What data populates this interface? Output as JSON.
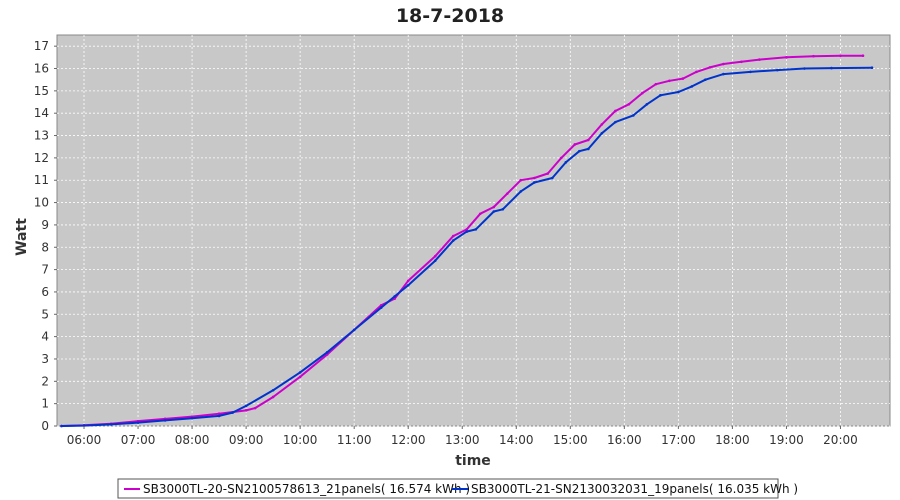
{
  "chart_data": {
    "type": "line",
    "title": "18-7-2018",
    "xlabel": "time",
    "ylabel": "Watt",
    "x_tick_labels": [
      "06:00",
      "07:00",
      "08:00",
      "09:00",
      "10:00",
      "11:00",
      "12:00",
      "13:00",
      "14:00",
      "15:00",
      "16:00",
      "17:00",
      "18:00",
      "19:00",
      "20:00"
    ],
    "xlim": [
      "05:30",
      "20:55"
    ],
    "ylim": [
      0,
      17.5
    ],
    "y_ticks": [
      0,
      1,
      2,
      3,
      4,
      5,
      6,
      7,
      8,
      9,
      10,
      11,
      12,
      13,
      14,
      15,
      16,
      17
    ],
    "grid": true,
    "legend_position": "bottom",
    "background": "#c8c8c8",
    "series": [
      {
        "name": "SB3000TL-20-SN2100578613_21panels( 16.574 kWh )",
        "color": "#cc00cc",
        "points": [
          [
            "05:35",
            0.0
          ],
          [
            "06:00",
            0.03
          ],
          [
            "06:30",
            0.1
          ],
          [
            "07:00",
            0.22
          ],
          [
            "07:30",
            0.32
          ],
          [
            "08:00",
            0.42
          ],
          [
            "08:30",
            0.55
          ],
          [
            "09:00",
            0.7
          ],
          [
            "09:10",
            0.8
          ],
          [
            "09:30",
            1.3
          ],
          [
            "10:00",
            2.2
          ],
          [
            "10:30",
            3.2
          ],
          [
            "11:00",
            4.3
          ],
          [
            "11:30",
            5.4
          ],
          [
            "11:45",
            5.7
          ],
          [
            "12:00",
            6.5
          ],
          [
            "12:30",
            7.6
          ],
          [
            "12:50",
            8.5
          ],
          [
            "13:05",
            8.8
          ],
          [
            "13:20",
            9.5
          ],
          [
            "13:35",
            9.8
          ],
          [
            "13:50",
            10.4
          ],
          [
            "14:05",
            11.0
          ],
          [
            "14:20",
            11.1
          ],
          [
            "14:35",
            11.3
          ],
          [
            "14:50",
            12.0
          ],
          [
            "15:05",
            12.6
          ],
          [
            "15:20",
            12.8
          ],
          [
            "15:35",
            13.5
          ],
          [
            "15:50",
            14.1
          ],
          [
            "16:05",
            14.4
          ],
          [
            "16:20",
            14.9
          ],
          [
            "16:35",
            15.3
          ],
          [
            "16:50",
            15.45
          ],
          [
            "17:05",
            15.55
          ],
          [
            "17:20",
            15.85
          ],
          [
            "17:35",
            16.05
          ],
          [
            "17:50",
            16.2
          ],
          [
            "18:10",
            16.3
          ],
          [
            "18:30",
            16.4
          ],
          [
            "19:00",
            16.5
          ],
          [
            "19:30",
            16.55
          ],
          [
            "20:00",
            16.57
          ],
          [
            "20:25",
            16.574
          ]
        ]
      },
      {
        "name": "SB3000TL-21-SN2130032031_19panels( 16.035 kWh )",
        "color": "#0033cc",
        "points": [
          [
            "05:35",
            0.0
          ],
          [
            "06:00",
            0.02
          ],
          [
            "06:30",
            0.07
          ],
          [
            "07:00",
            0.15
          ],
          [
            "07:30",
            0.25
          ],
          [
            "08:00",
            0.35
          ],
          [
            "08:30",
            0.45
          ],
          [
            "08:45",
            0.6
          ],
          [
            "09:00",
            0.9
          ],
          [
            "09:30",
            1.6
          ],
          [
            "10:00",
            2.4
          ],
          [
            "10:30",
            3.3
          ],
          [
            "11:00",
            4.3
          ],
          [
            "11:30",
            5.3
          ],
          [
            "11:45",
            5.8
          ],
          [
            "12:00",
            6.3
          ],
          [
            "12:30",
            7.4
          ],
          [
            "12:50",
            8.3
          ],
          [
            "13:05",
            8.7
          ],
          [
            "13:15",
            8.8
          ],
          [
            "13:35",
            9.6
          ],
          [
            "13:45",
            9.7
          ],
          [
            "14:05",
            10.5
          ],
          [
            "14:20",
            10.9
          ],
          [
            "14:40",
            11.1
          ],
          [
            "14:55",
            11.8
          ],
          [
            "15:10",
            12.3
          ],
          [
            "15:20",
            12.4
          ],
          [
            "15:35",
            13.1
          ],
          [
            "15:50",
            13.6
          ],
          [
            "16:10",
            13.9
          ],
          [
            "16:25",
            14.4
          ],
          [
            "16:40",
            14.8
          ],
          [
            "17:00",
            14.95
          ],
          [
            "17:15",
            15.2
          ],
          [
            "17:30",
            15.5
          ],
          [
            "17:50",
            15.75
          ],
          [
            "18:20",
            15.85
          ],
          [
            "18:50",
            15.93
          ],
          [
            "19:20",
            16.0
          ],
          [
            "19:50",
            16.02
          ],
          [
            "20:35",
            16.035
          ]
        ]
      }
    ]
  }
}
